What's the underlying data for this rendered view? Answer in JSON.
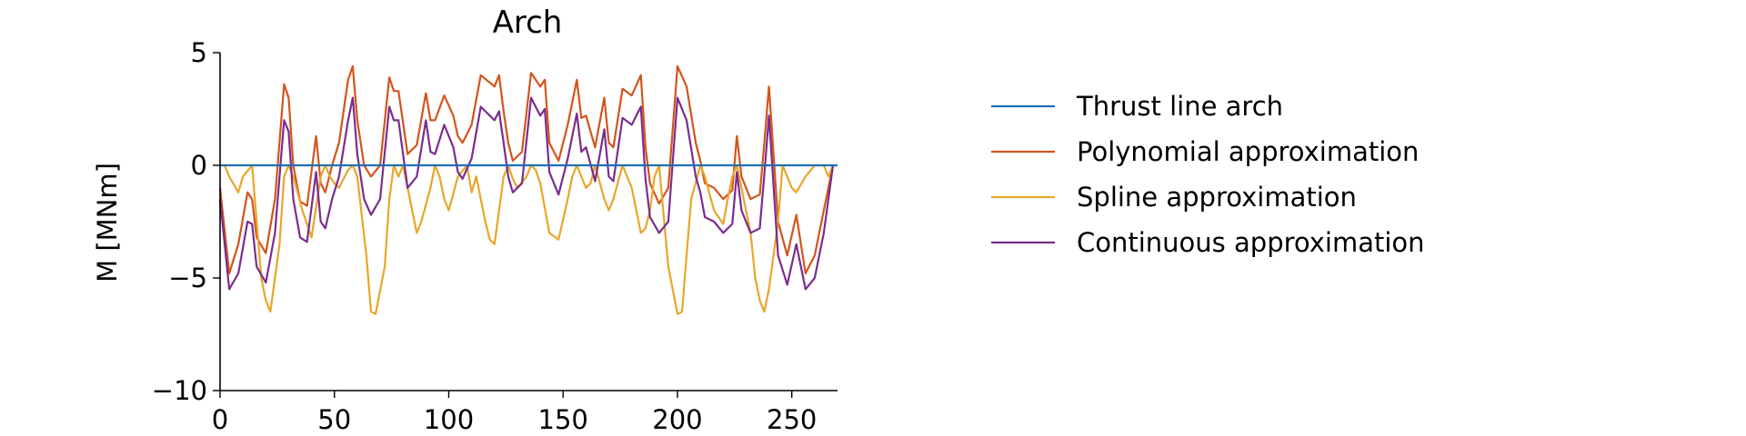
{
  "chart_data": {
    "type": "line",
    "title": "Arch",
    "xlabel": "",
    "ylabel": "M [MNm]",
    "xlim": [
      0,
      270
    ],
    "ylim": [
      -10,
      5
    ],
    "xticks": [
      0,
      50,
      100,
      150,
      200,
      250
    ],
    "yticks": [
      -10,
      -5,
      0,
      5
    ],
    "xtick_labels": [
      "0",
      "50",
      "100",
      "150",
      "200",
      "250"
    ],
    "ytick_labels": [
      "−10",
      "−5",
      "0",
      "5"
    ],
    "grid": false,
    "legend_position": "right",
    "series": [
      {
        "name": "Thrust line arch",
        "color": "#1f6fb4",
        "x": [
          0,
          270
        ],
        "y": [
          0,
          0
        ]
      },
      {
        "name": "Polynomial approximation",
        "color": "#d4541c",
        "x": [
          0,
          4,
          8,
          12,
          14,
          16,
          20,
          24,
          28,
          30,
          32,
          35,
          38,
          42,
          44,
          46,
          49,
          52,
          56,
          58,
          60,
          63,
          66,
          70,
          74,
          76,
          78,
          82,
          86,
          90,
          92,
          94,
          98,
          102,
          104,
          106,
          110,
          114,
          120,
          122,
          124,
          126,
          128,
          132,
          136,
          140,
          142,
          144,
          148,
          152,
          156,
          158,
          160,
          164,
          168,
          170,
          172,
          176,
          180,
          184,
          186,
          188,
          192,
          196,
          200,
          204,
          208,
          210,
          212,
          216,
          220,
          224,
          226,
          228,
          232,
          236,
          238,
          240,
          244,
          248,
          252,
          256,
          260,
          264,
          268
        ],
        "y": [
          -1,
          -4.8,
          -3.5,
          -1.2,
          -1.5,
          -3.2,
          -3.9,
          -1.5,
          3.6,
          3.0,
          0,
          -1.6,
          -1.8,
          1.3,
          -0.8,
          -1.2,
          0,
          1.0,
          3.8,
          4.4,
          2.0,
          0,
          -0.5,
          0,
          3.9,
          3.3,
          3.3,
          0.5,
          0.9,
          3.2,
          2.0,
          2.0,
          3.1,
          2.2,
          1.3,
          1.0,
          1.8,
          4.0,
          3.5,
          4.0,
          2.4,
          1.0,
          0.2,
          0.6,
          4.1,
          3.5,
          3.8,
          1.0,
          0.2,
          1.8,
          3.8,
          2.1,
          2.2,
          0.8,
          3.0,
          1.0,
          0.8,
          3.4,
          3.1,
          4.0,
          0.8,
          -0.8,
          -1.7,
          -1.0,
          4.4,
          3.5,
          1.0,
          0.2,
          -0.8,
          -1.0,
          -1.5,
          -1.1,
          1.3,
          -0.5,
          -1.5,
          -1.3,
          1.0,
          3.5,
          -2.5,
          -4.0,
          -2.2,
          -4.8,
          -4.0,
          -2.0,
          0
        ]
      },
      {
        "name": "Spline approximation",
        "color": "#e8a62a",
        "x": [
          0,
          2,
          4,
          8,
          10,
          14,
          18,
          20,
          22,
          26,
          28,
          30,
          32,
          36,
          40,
          44,
          46,
          48,
          50,
          52,
          56,
          58,
          60,
          64,
          66,
          68,
          72,
          74,
          76,
          78,
          80,
          84,
          86,
          88,
          92,
          94,
          96,
          98,
          100,
          104,
          108,
          110,
          112,
          116,
          118,
          120,
          124,
          126,
          128,
          130,
          134,
          136,
          138,
          140,
          144,
          148,
          152,
          154,
          156,
          158,
          160,
          162,
          164,
          168,
          170,
          172,
          176,
          178,
          180,
          184,
          186,
          188,
          190,
          192,
          196,
          200,
          202,
          204,
          206,
          210,
          212,
          216,
          220,
          222,
          224,
          226,
          232,
          234,
          236,
          238,
          240,
          244,
          246,
          250,
          252,
          256,
          260,
          264,
          266,
          268
        ],
        "y": [
          0,
          0,
          -0.5,
          -1.2,
          -0.5,
          0,
          -5.0,
          -6.0,
          -6.5,
          -3.5,
          -0.5,
          0,
          -0.5,
          -2.0,
          -3.2,
          -0.5,
          0,
          -0.5,
          -0.8,
          -1.0,
          -0.2,
          0,
          -0.5,
          -4.0,
          -6.5,
          -6.6,
          -4.5,
          -1.5,
          0,
          -0.5,
          0,
          -2.0,
          -3.0,
          -2.5,
          -1.0,
          0,
          -0.5,
          -1.5,
          -2.0,
          -0.5,
          0,
          -1.2,
          -0.5,
          -2.5,
          -3.3,
          -3.5,
          -0.5,
          0,
          -0.6,
          -1.0,
          -0.5,
          0,
          -0.2,
          -0.8,
          -3.0,
          -3.3,
          -1.5,
          -0.5,
          0,
          -0.5,
          -1.0,
          -0.8,
          0,
          -1.5,
          -2.0,
          -1.5,
          0,
          -0.5,
          -1.0,
          -3.0,
          -2.8,
          -2.0,
          -0.5,
          0,
          -4.5,
          -6.6,
          -6.5,
          -4.0,
          -1.5,
          0,
          -0.5,
          -2.0,
          -2.6,
          -1.5,
          -0.5,
          0,
          -3.0,
          -5.0,
          -6.0,
          -6.5,
          -5.5,
          -2.5,
          0,
          -1.0,
          -1.2,
          -0.5,
          0,
          0,
          -0.5,
          0
        ]
      },
      {
        "name": "Continuous approximation",
        "color": "#7b2d8e",
        "x": [
          0,
          4,
          8,
          12,
          14,
          16,
          20,
          24,
          28,
          30,
          32,
          35,
          38,
          42,
          44,
          46,
          49,
          52,
          56,
          58,
          60,
          63,
          66,
          70,
          74,
          76,
          78,
          82,
          86,
          90,
          92,
          94,
          98,
          102,
          104,
          106,
          110,
          114,
          120,
          122,
          124,
          126,
          128,
          132,
          136,
          140,
          142,
          144,
          148,
          152,
          156,
          158,
          160,
          164,
          168,
          170,
          172,
          176,
          180,
          184,
          186,
          188,
          192,
          196,
          200,
          204,
          208,
          210,
          212,
          216,
          220,
          224,
          226,
          228,
          232,
          236,
          238,
          240,
          244,
          248,
          252,
          256,
          260,
          264,
          268
        ],
        "y": [
          -1.5,
          -5.5,
          -4.8,
          -2.5,
          -2.6,
          -4.5,
          -5.2,
          -3.0,
          2.0,
          1.5,
          -1.5,
          -3.2,
          -3.4,
          -0.3,
          -2.5,
          -2.8,
          -1.5,
          -0.5,
          2.0,
          3.0,
          0.5,
          -1.5,
          -2.2,
          -1.5,
          2.6,
          2.0,
          2.0,
          -1.0,
          -0.5,
          2.0,
          0.6,
          0.5,
          1.8,
          0.8,
          -0.3,
          -0.6,
          0.3,
          2.6,
          2.0,
          2.4,
          1.0,
          -0.5,
          -1.2,
          -0.8,
          3.0,
          2.2,
          2.5,
          -0.3,
          -1.3,
          0.3,
          2.3,
          0.6,
          0.8,
          -0.7,
          1.6,
          -0.5,
          -0.7,
          2.1,
          1.8,
          2.6,
          -0.6,
          -2.3,
          -3.0,
          -2.5,
          3.0,
          2.0,
          -0.5,
          -1.2,
          -2.3,
          -2.5,
          -3.0,
          -2.6,
          -0.3,
          -2.0,
          -3.0,
          -2.8,
          -0.4,
          2.2,
          -4.0,
          -5.3,
          -3.5,
          -5.5,
          -5.0,
          -3.0,
          0
        ]
      }
    ]
  }
}
